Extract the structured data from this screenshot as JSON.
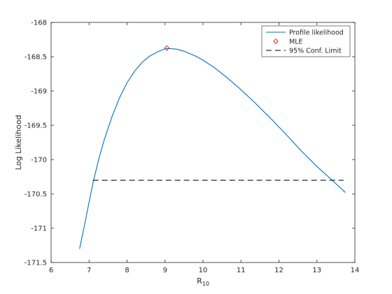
{
  "chart_data": {
    "type": "line",
    "title": "",
    "xlabel": "R",
    "xlabel_subscript": "10",
    "ylabel": "Log Likelihood",
    "xlim": [
      6,
      14
    ],
    "ylim": [
      -171.5,
      -168
    ],
    "xticks": [
      6,
      7,
      8,
      9,
      10,
      11,
      12,
      13,
      14
    ],
    "xtick_labels": [
      "6",
      "7",
      "8",
      "9",
      "10",
      "11",
      "12",
      "13",
      "14"
    ],
    "yticks": [
      -171.5,
      -171,
      -170.5,
      -170,
      -169.5,
      -169,
      -168.5,
      -168
    ],
    "ytick_labels": [
      "-171.5",
      "-171",
      "-170.5",
      "-170",
      "-169.5",
      "-169",
      "-168.5",
      "-168"
    ],
    "grid": false,
    "legend_position": "top-right",
    "series": [
      {
        "name": "Profile likelihood",
        "kind": "line",
        "color": "#0072BD",
        "x": [
          6.75,
          6.9,
          7.0,
          7.1,
          7.25,
          7.4,
          7.6,
          7.8,
          8.0,
          8.2,
          8.4,
          8.6,
          8.8,
          9.0,
          9.1,
          9.3,
          9.5,
          9.8,
          10.0,
          10.3,
          10.6,
          11.0,
          11.4,
          11.8,
          12.2,
          12.6,
          13.0,
          13.4,
          13.75
        ],
        "y": [
          -171.3,
          -170.9,
          -170.62,
          -170.35,
          -170.0,
          -169.71,
          -169.38,
          -169.1,
          -168.88,
          -168.71,
          -168.58,
          -168.49,
          -168.43,
          -168.385,
          -168.38,
          -168.39,
          -168.42,
          -168.49,
          -168.55,
          -168.66,
          -168.79,
          -168.98,
          -169.19,
          -169.41,
          -169.64,
          -169.88,
          -170.1,
          -170.3,
          -170.48
        ]
      },
      {
        "name": "MLE",
        "kind": "marker",
        "marker": "diamond",
        "color": "#D62728",
        "x": [
          9.05
        ],
        "y": [
          -168.375
        ]
      },
      {
        "name": "95% Conf. Limit",
        "kind": "dashed",
        "color": "#000000",
        "x": [
          7.1,
          13.7
        ],
        "y": [
          -170.3,
          -170.3
        ]
      }
    ]
  }
}
